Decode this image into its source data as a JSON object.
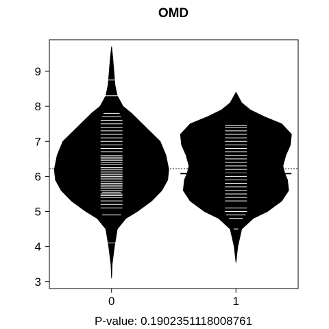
{
  "chart_data": {
    "type": "beanplot",
    "title": "OMD",
    "xlabel": "P-value: 0.190235111800876​1",
    "ylabel": "",
    "categories": [
      "0",
      "1"
    ],
    "ylim": [
      2.8,
      9.9
    ],
    "yticks": [
      3,
      4,
      5,
      6,
      7,
      8,
      9
    ],
    "overall_mean": 6.22,
    "grid": false,
    "beans": [
      {
        "name": "0",
        "mean": 6.3,
        "min": 3.1,
        "max": 9.7,
        "density": [
          [
            3.1,
            0.0
          ],
          [
            3.5,
            0.01
          ],
          [
            4.0,
            0.05
          ],
          [
            4.5,
            0.1
          ],
          [
            4.8,
            0.25
          ],
          [
            5.0,
            0.45
          ],
          [
            5.3,
            0.7
          ],
          [
            5.6,
            0.88
          ],
          [
            5.9,
            0.98
          ],
          [
            6.2,
            1.0
          ],
          [
            6.6,
            0.95
          ],
          [
            7.0,
            0.85
          ],
          [
            7.4,
            0.6
          ],
          [
            7.8,
            0.35
          ],
          [
            8.0,
            0.2
          ],
          [
            8.3,
            0.1
          ],
          [
            8.6,
            0.06
          ],
          [
            9.0,
            0.04
          ],
          [
            9.4,
            0.02
          ],
          [
            9.7,
            0.0
          ]
        ],
        "observations": [
          4.1,
          4.9,
          5.1,
          5.2,
          5.3,
          5.4,
          5.45,
          5.5,
          5.55,
          5.6,
          5.65,
          5.7,
          5.75,
          5.8,
          5.85,
          5.9,
          5.95,
          6.0,
          6.05,
          6.1,
          6.15,
          6.2,
          6.25,
          6.3,
          6.35,
          6.4,
          6.45,
          6.5,
          6.55,
          6.6,
          6.7,
          6.8,
          6.9,
          7.0,
          7.1,
          7.2,
          7.3,
          7.4,
          7.5,
          7.6,
          7.7,
          7.8,
          8.3,
          8.75
        ],
        "wide_lines": [
          4.1,
          4.9,
          5.55,
          7.75,
          8.3,
          8.75
        ]
      },
      {
        "name": "1",
        "mean": 6.08,
        "min": 3.55,
        "max": 8.4,
        "density": [
          [
            3.55,
            0.0
          ],
          [
            4.0,
            0.03
          ],
          [
            4.5,
            0.1
          ],
          [
            4.8,
            0.3
          ],
          [
            5.0,
            0.55
          ],
          [
            5.3,
            0.8
          ],
          [
            5.6,
            0.92
          ],
          [
            5.9,
            0.9
          ],
          [
            6.1,
            0.85
          ],
          [
            6.3,
            0.82
          ],
          [
            6.6,
            0.87
          ],
          [
            6.9,
            0.95
          ],
          [
            7.2,
            0.97
          ],
          [
            7.5,
            0.8
          ],
          [
            7.7,
            0.5
          ],
          [
            7.9,
            0.25
          ],
          [
            8.1,
            0.1
          ],
          [
            8.4,
            0.0
          ]
        ],
        "observations": [
          4.5,
          4.8,
          4.9,
          5.0,
          5.1,
          5.3,
          5.4,
          5.5,
          5.6,
          5.7,
          5.8,
          5.9,
          6.0,
          6.1,
          6.2,
          6.3,
          6.4,
          6.5,
          6.6,
          6.7,
          6.8,
          6.9,
          7.0,
          7.1,
          7.2,
          7.3,
          7.4,
          7.45
        ],
        "wide_lines": []
      }
    ]
  }
}
